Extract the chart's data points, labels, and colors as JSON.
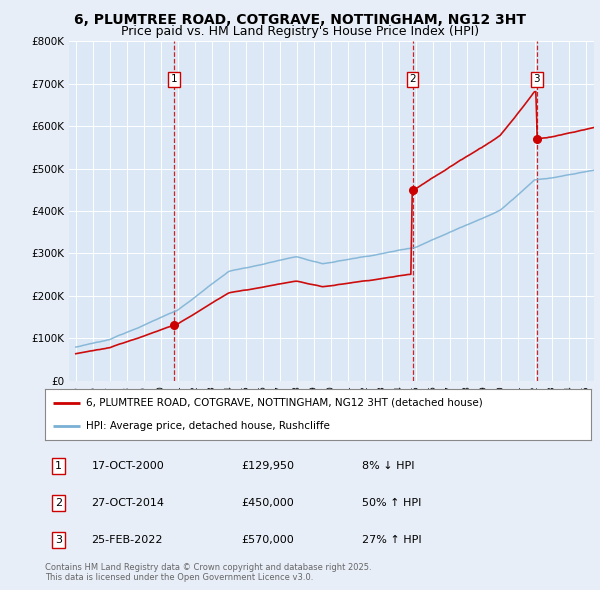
{
  "title": "6, PLUMTREE ROAD, COTGRAVE, NOTTINGHAM, NG12 3HT",
  "subtitle": "Price paid vs. HM Land Registry's House Price Index (HPI)",
  "ylim": [
    0,
    800000
  ],
  "yticks": [
    0,
    100000,
    200000,
    300000,
    400000,
    500000,
    600000,
    700000,
    800000
  ],
  "ytick_labels": [
    "£0",
    "£100K",
    "£200K",
    "£300K",
    "£400K",
    "£500K",
    "£600K",
    "£700K",
    "£800K"
  ],
  "xlim_start": 1994.6,
  "xlim_end": 2025.5,
  "sale_dates": [
    2000.79,
    2014.82,
    2022.14
  ],
  "sale_prices": [
    129950,
    450000,
    570000
  ],
  "sale_labels": [
    "1",
    "2",
    "3"
  ],
  "sale_date_strings": [
    "17-OCT-2000",
    "27-OCT-2014",
    "25-FEB-2022"
  ],
  "sale_price_strings": [
    "£129,950",
    "£450,000",
    "£570,000"
  ],
  "sale_hpi_strings": [
    "8% ↓ HPI",
    "50% ↑ HPI",
    "27% ↑ HPI"
  ],
  "red_line_color": "#cc0000",
  "blue_line_color": "#7ab0d4",
  "dashed_line_color": "#cc0000",
  "background_color": "#e8eef8",
  "plot_bg_color": "#dce8f5",
  "legend_line1": "6, PLUMTREE ROAD, COTGRAVE, NOTTINGHAM, NG12 3HT (detached house)",
  "legend_line2": "HPI: Average price, detached house, Rushcliffe",
  "footer": "Contains HM Land Registry data © Crown copyright and database right 2025.\nThis data is licensed under the Open Government Licence v3.0.",
  "title_fontsize": 10,
  "subtitle_fontsize": 9
}
